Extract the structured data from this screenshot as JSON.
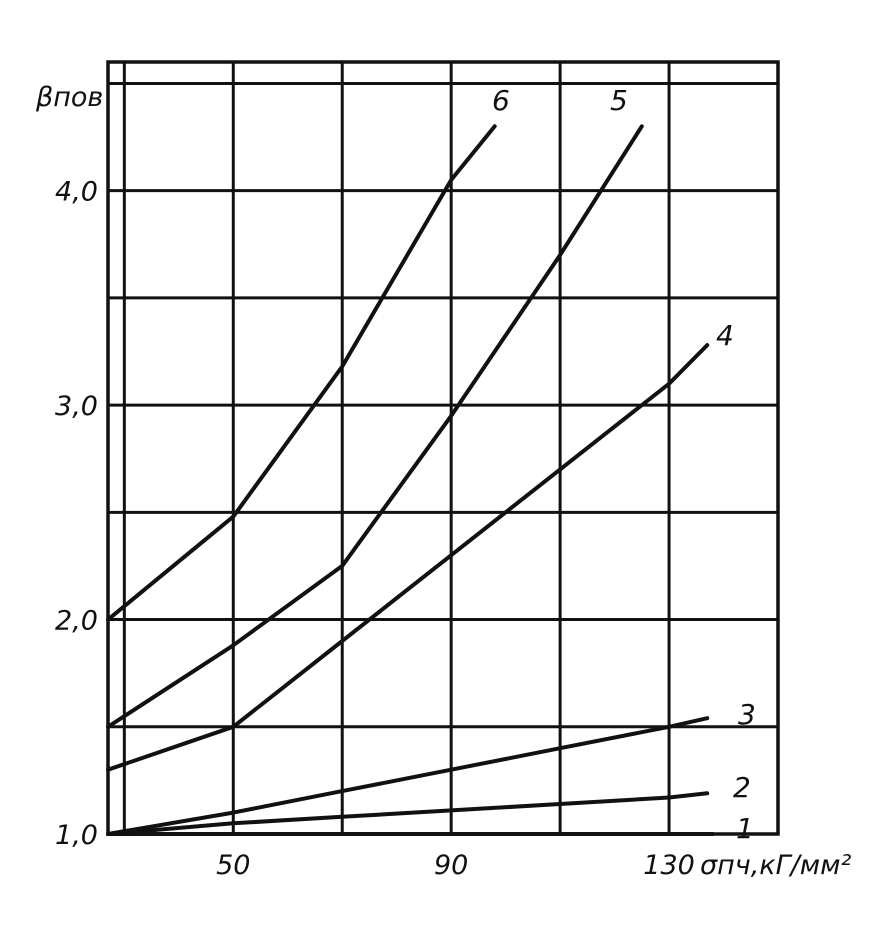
{
  "chart_data": {
    "type": "line",
    "title": "",
    "ylabel": "βпов",
    "xlabel": "σпч,кГ/мм²",
    "xlim": [
      27,
      150
    ],
    "ylim": [
      1.0,
      4.6
    ],
    "x_ticks": [
      {
        "value": 50,
        "label": "50"
      },
      {
        "value": 90,
        "label": "90"
      },
      {
        "value": 130,
        "label": "130"
      }
    ],
    "y_ticks": [
      {
        "value": 1.0,
        "label": "1,0"
      },
      {
        "value": 2.0,
        "label": "2,0"
      },
      {
        "value": 3.0,
        "label": "3,0"
      },
      {
        "value": 4.0,
        "label": "4,0"
      }
    ],
    "grid": true,
    "series": [
      {
        "name": "1",
        "x": [
          27,
          50,
          70,
          90,
          110,
          130,
          138
        ],
        "y": [
          1.0,
          1.0,
          1.0,
          1.0,
          1.0,
          1.0,
          1.0
        ]
      },
      {
        "name": "2",
        "x": [
          27,
          50,
          70,
          90,
          110,
          130,
          137
        ],
        "y": [
          1.0,
          1.05,
          1.08,
          1.11,
          1.14,
          1.17,
          1.19
        ]
      },
      {
        "name": "3",
        "x": [
          27,
          50,
          70,
          90,
          110,
          130,
          137
        ],
        "y": [
          1.0,
          1.1,
          1.2,
          1.3,
          1.4,
          1.5,
          1.54
        ]
      },
      {
        "name": "4",
        "x": [
          27,
          50,
          70,
          90,
          110,
          130,
          137
        ],
        "y": [
          1.3,
          1.5,
          1.9,
          2.3,
          2.7,
          3.1,
          3.28
        ]
      },
      {
        "name": "5",
        "x": [
          27,
          50,
          70,
          90,
          110,
          125
        ],
        "y": [
          1.5,
          1.88,
          2.25,
          2.95,
          3.7,
          4.3
        ]
      },
      {
        "name": "6",
        "x": [
          27,
          50,
          70,
          90,
          98
        ],
        "y": [
          2.0,
          2.48,
          3.18,
          4.05,
          4.3
        ]
      }
    ]
  }
}
